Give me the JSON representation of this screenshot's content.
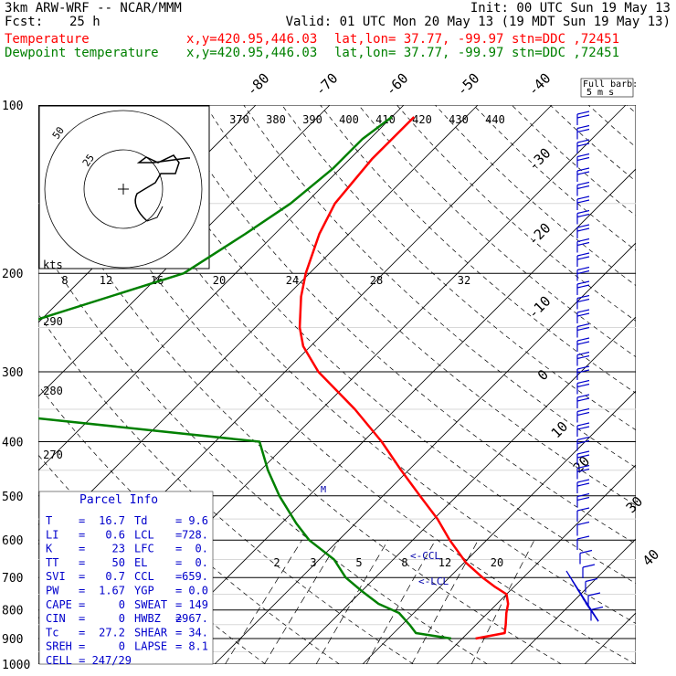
{
  "header": {
    "model": "3km ARW-WRF -- NCAR/MMM",
    "init": "Init: 00 UTC Sun 19 May 13",
    "fcst_label": "Fcst:",
    "fcst_value": "25 h",
    "valid": "Valid: 01 UTC Mon 20 May 13 (19 MDT Sun 19 May 13)",
    "temp_label": "Temperature",
    "dew_label": "Dewpoint temperature",
    "xy": "x,y=420.95,446.03",
    "latlon": "lat,lon= 37.77, -99.97",
    "stn": "stn=DDC ,72451",
    "temp_color": "#ff0000",
    "dew_color": "#008000"
  },
  "barb_key": {
    "line1": "Full barb:",
    "line2": "5 m s"
  },
  "parcel_info": {
    "title": "Parcel Info",
    "rows": [
      [
        "T",
        "16.7",
        "Td",
        "9.6"
      ],
      [
        "LI",
        "0.6",
        "LCL",
        "728."
      ],
      [
        "K",
        "23",
        "LFC",
        "0."
      ],
      [
        "TT",
        "50",
        "EL",
        "0."
      ],
      [
        "SVI",
        "0.7",
        "CCL",
        "659."
      ],
      [
        "PW",
        "1.67",
        "YGP",
        "0.0"
      ],
      [
        "CAPE",
        "0",
        "SWEAT",
        "149"
      ],
      [
        "CIN",
        "0",
        "HWBZ",
        "2967."
      ],
      [
        "Tc",
        "27.2",
        "SHEAR",
        "34."
      ],
      [
        "SREH",
        "0",
        "LAPSE",
        "8.1"
      ]
    ],
    "cell": "CELL = 247/29"
  },
  "hodograph": {
    "unit": "kts",
    "ring_labels": [
      "25",
      "50"
    ],
    "speed_ticks": [
      "8",
      "12",
      "16",
      "20",
      "24",
      "28",
      "32"
    ]
  },
  "chart_data": {
    "type": "line",
    "subtype": "skew-T log-p",
    "pressure_levels": [
      100,
      200,
      300,
      400,
      500,
      600,
      700,
      800,
      900,
      1000
    ],
    "isotherm_labels": [
      -80,
      -70,
      -60,
      -50,
      -40,
      -30,
      -20,
      -10,
      0,
      10,
      20,
      30,
      40
    ],
    "theta_labels": [
      370,
      380,
      390,
      400,
      410,
      420,
      430,
      440
    ],
    "theta_low_labels": [
      290,
      280,
      270
    ],
    "mixing_ratio_labels": [
      "2",
      "3",
      "5",
      "8",
      "12",
      "20"
    ],
    "markers": {
      "lcl": "<-LCL",
      "ccl": "<-CCL"
    },
    "series": [
      {
        "name": "Temperature",
        "color": "#ff0000",
        "p": [
          900,
          880,
          850,
          810,
          780,
          750,
          728,
          700,
          659,
          600,
          550,
          500,
          450,
          400,
          350,
          300,
          270,
          250,
          220,
          200,
          170,
          150,
          125,
          105
        ],
        "t": [
          21.8,
          25.0,
          24.0,
          22.5,
          21.5,
          20.0,
          17.5,
          14.5,
          10.3,
          5.0,
          0.5,
          -5.0,
          -11.0,
          -17.5,
          -25.5,
          -35.5,
          -41.0,
          -44.0,
          -48.0,
          -50.5,
          -54.0,
          -56.0,
          -57.0,
          -57.0
        ]
      },
      {
        "name": "Dewpoint temperature",
        "color": "#008000",
        "p": [
          900,
          880,
          850,
          810,
          780,
          740,
          700,
          650,
          600,
          560,
          500,
          450,
          400,
          350,
          310,
          290,
          270,
          240,
          200,
          170,
          150,
          130,
          115,
          105
        ],
        "t": [
          18.5,
          13.0,
          11.0,
          8.0,
          4.0,
          0.0,
          -4.0,
          -8.0,
          -14.0,
          -18.0,
          -24.0,
          -29.0,
          -34.0,
          -80.0,
          -92.0,
          -86.0,
          -87.0,
          -80.0,
          -67.0,
          -64.0,
          -62.0,
          -61.0,
          -61.0,
          -60.0
        ]
      }
    ]
  }
}
